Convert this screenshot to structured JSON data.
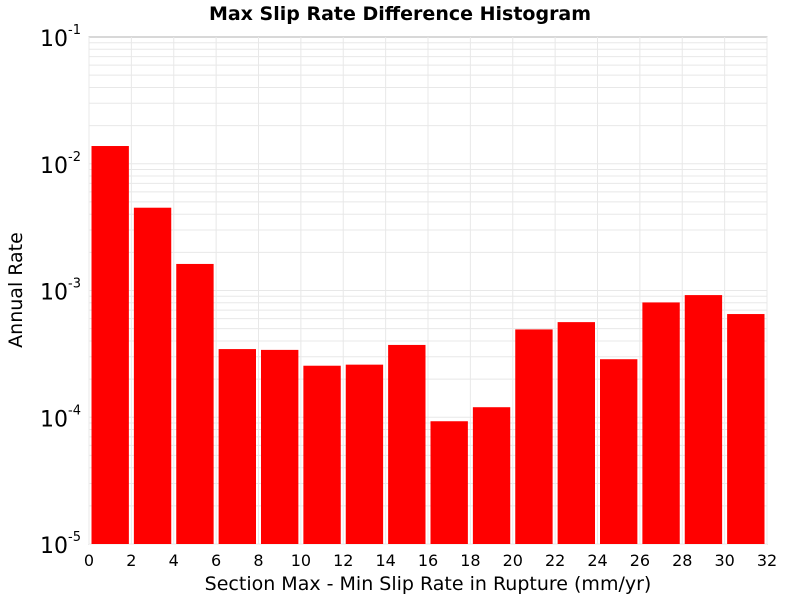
{
  "chart_data": {
    "type": "bar",
    "title": "Max Slip Rate Difference Histogram",
    "xlabel": "Section Max - Min Slip Rate in Rupture (mm/yr)",
    "ylabel": "Annual Rate",
    "y_scale": "log",
    "xlim": [
      0,
      32
    ],
    "ylim": [
      1e-05,
      0.1
    ],
    "x_ticks": [
      "0",
      "2",
      "4",
      "6",
      "8",
      "10",
      "12",
      "14",
      "16",
      "18",
      "20",
      "22",
      "24",
      "26",
      "28",
      "30",
      "32"
    ],
    "y_ticks": [
      {
        "base": "10",
        "exp": "-5",
        "value": 1e-05
      },
      {
        "base": "10",
        "exp": "-4",
        "value": 0.0001
      },
      {
        "base": "10",
        "exp": "-3",
        "value": 0.001
      },
      {
        "base": "10",
        "exp": "-2",
        "value": 0.01
      },
      {
        "base": "10",
        "exp": "-1",
        "value": 0.1
      }
    ],
    "bin_width": 2,
    "bins": [
      {
        "x_start": 0,
        "value": 0.0138
      },
      {
        "x_start": 2,
        "value": 0.0045
      },
      {
        "x_start": 4,
        "value": 0.00162
      },
      {
        "x_start": 6,
        "value": 0.000345
      },
      {
        "x_start": 8,
        "value": 0.00034
      },
      {
        "x_start": 10,
        "value": 0.000255
      },
      {
        "x_start": 12,
        "value": 0.00026
      },
      {
        "x_start": 14,
        "value": 0.000372
      },
      {
        "x_start": 16,
        "value": 9.3e-05
      },
      {
        "x_start": 18,
        "value": 0.00012
      },
      {
        "x_start": 20,
        "value": 0.000493
      },
      {
        "x_start": 22,
        "value": 0.000563
      },
      {
        "x_start": 24,
        "value": 0.000287
      },
      {
        "x_start": 26,
        "value": 0.000805
      },
      {
        "x_start": 28,
        "value": 0.00092
      },
      {
        "x_start": 30,
        "value": 0.000652
      }
    ],
    "bar_color": "#ff0000",
    "grid": true,
    "legend": false
  }
}
